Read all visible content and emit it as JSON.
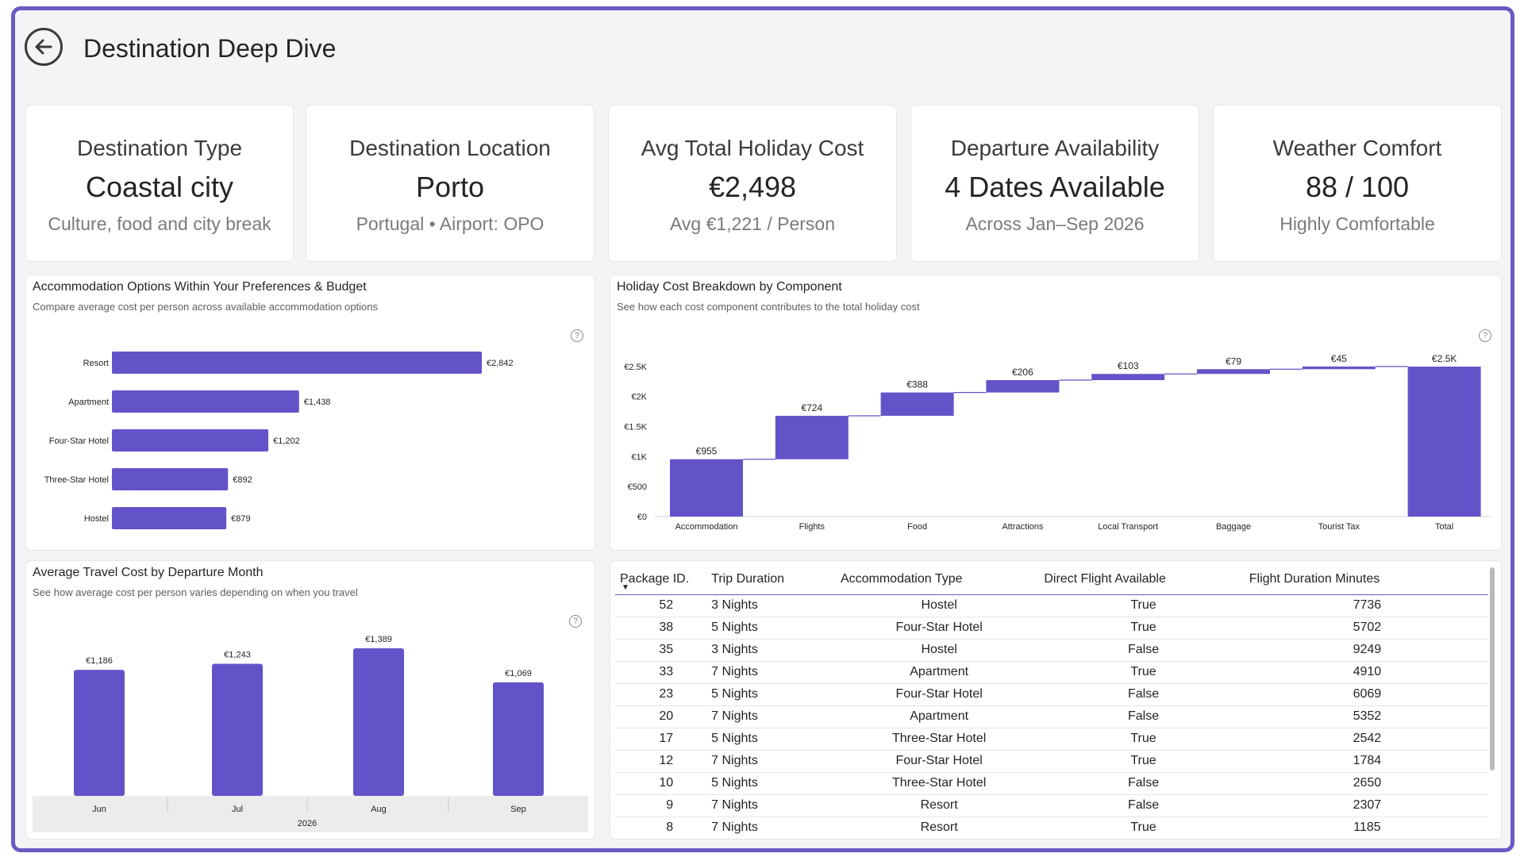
{
  "header": {
    "title": "Destination Deep Dive"
  },
  "kpis": [
    {
      "title": "Destination Type",
      "value": "Coastal city",
      "sub": "Culture, food and city break"
    },
    {
      "title": "Destination Location",
      "value": "Porto",
      "sub": "Portugal • Airport: OPO"
    },
    {
      "title": "Avg Total Holiday Cost",
      "value": "€2,498",
      "sub": "Avg €1,221 / Person"
    },
    {
      "title": "Departure Availability",
      "value": "4 Dates Available",
      "sub": "Across Jan–Sep 2026"
    },
    {
      "title": "Weather Comfort",
      "value": "88 / 100",
      "sub": "Highly Comfortable"
    }
  ],
  "accommodation_chart": {
    "title": "Accommodation Options Within Your Preferences & Budget",
    "subtitle": "Compare average cost per person across available accommodation options"
  },
  "waterfall_chart": {
    "title": "Holiday Cost Breakdown by Component",
    "subtitle": "See how each cost component contributes to the total holiday cost"
  },
  "month_chart": {
    "title": "Average Travel Cost by Departure Month",
    "subtitle": "See how average cost per person varies depending on when you travel",
    "year_label": "2026"
  },
  "table": {
    "columns": [
      "Package ID.",
      "Trip Duration",
      "Accommodation Type",
      "Direct Flight Available",
      "Flight Duration Minutes"
    ],
    "rows": [
      [
        "52",
        "3 Nights",
        "Hostel",
        "True",
        "7736"
      ],
      [
        "38",
        "5 Nights",
        "Four-Star Hotel",
        "True",
        "5702"
      ],
      [
        "35",
        "3 Nights",
        "Hostel",
        "False",
        "9249"
      ],
      [
        "33",
        "7 Nights",
        "Apartment",
        "True",
        "4910"
      ],
      [
        "23",
        "5 Nights",
        "Four-Star Hotel",
        "False",
        "6069"
      ],
      [
        "20",
        "7 Nights",
        "Apartment",
        "False",
        "5352"
      ],
      [
        "17",
        "5 Nights",
        "Three-Star Hotel",
        "True",
        "2542"
      ],
      [
        "12",
        "7 Nights",
        "Four-Star Hotel",
        "True",
        "1784"
      ],
      [
        "10",
        "5 Nights",
        "Three-Star Hotel",
        "False",
        "2650"
      ],
      [
        "9",
        "7 Nights",
        "Resort",
        "False",
        "2307"
      ],
      [
        "8",
        "7 Nights",
        "Resort",
        "True",
        "1185"
      ]
    ]
  },
  "colors": {
    "accent": "#6254c8",
    "frame": "#6a5ac4",
    "background": "#f4f4f6"
  },
  "chart_data": [
    {
      "type": "bar",
      "orientation": "horizontal",
      "categories": [
        "Resort",
        "Apartment",
        "Four-Star Hotel",
        "Three-Star Hotel",
        "Hostel"
      ],
      "values": [
        2842,
        1438,
        1202,
        892,
        879
      ],
      "labels": [
        "€2,842",
        "€1,438",
        "€1,202",
        "€892",
        "€879"
      ]
    },
    {
      "type": "waterfall",
      "categories": [
        "Accommodation",
        "Flights",
        "Food",
        "Attractions",
        "Local Transport",
        "Baggage",
        "Tourist Tax",
        "Total"
      ],
      "values": [
        955,
        724,
        388,
        206,
        103,
        79,
        45,
        2498
      ],
      "labels": [
        "€955",
        "€724",
        "€388",
        "€206",
        "€103",
        "€79",
        "€45",
        "€2.5K"
      ],
      "y_ticks": [
        "€0",
        "€500",
        "€1K",
        "€1.5K",
        "€2K",
        "€2.5K"
      ],
      "y_tick_values": [
        0,
        500,
        1000,
        1500,
        2000,
        2500
      ],
      "ylim": [
        0,
        2800
      ]
    },
    {
      "type": "bar",
      "orientation": "vertical",
      "categories": [
        "Jun",
        "Jul",
        "Aug",
        "Sep"
      ],
      "values": [
        1186,
        1243,
        1389,
        1069
      ],
      "labels": [
        "€1,186",
        "€1,243",
        "€1,389",
        "€1,069"
      ]
    }
  ]
}
